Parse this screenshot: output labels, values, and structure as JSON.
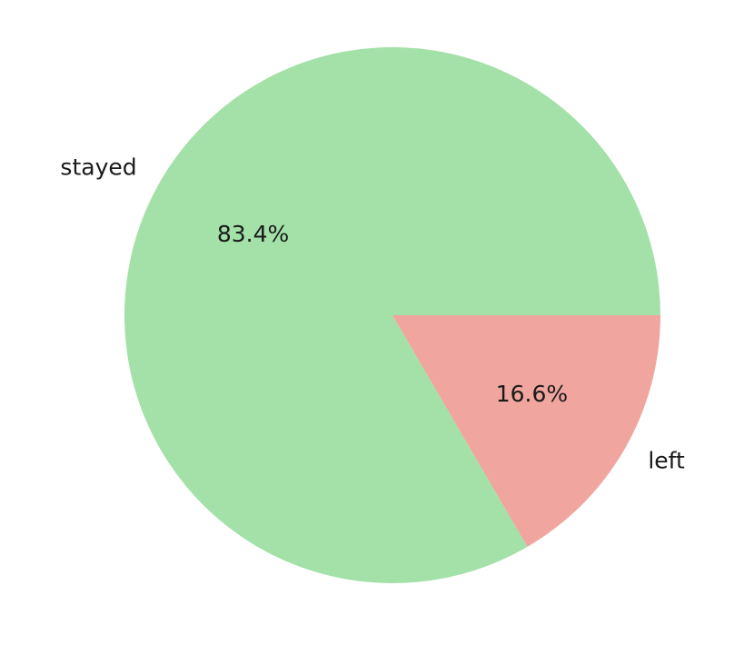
{
  "chart_data": {
    "type": "pie",
    "title": "",
    "start_angle": 0,
    "direction": "counterclockwise",
    "slices": [
      {
        "label": "stayed",
        "value": 83.4,
        "percent_label": "83.4%",
        "color": "#a3e1a8"
      },
      {
        "label": "left",
        "value": 16.6,
        "percent_label": "16.6%",
        "color": "#f0a59e"
      }
    ]
  }
}
